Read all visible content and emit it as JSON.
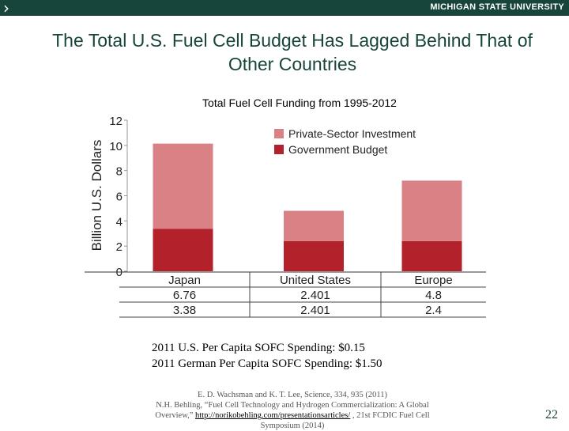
{
  "header": {
    "chevron": "›",
    "brand": "MICHIGAN STATE UNIVERSITY",
    "brand_color": "#18453b"
  },
  "slide": {
    "title_line1": "The Total U.S. Fuel Cell Budget Has Lagged Behind That of",
    "title_line2": "Other Countries",
    "subtitle": "Total Fuel Cell Funding from 1995-2012",
    "note1": "2011 U.S. Per Capita SOFC Spending: $0.15",
    "note2": "2011 German Per Capita SOFC Spending: $1.50",
    "citation_line1": "E. D. Wachsman and K. T. Lee, Science, 334, 935 (2011)",
    "citation_line2": "N.H. Behling, “Fuel Cell Technology and Hydrogen Commercialization: A Global",
    "citation_line3a": "Overview,”",
    "citation_link": "http://norikobehling.com/presentationsarticles/",
    "citation_line3b": ", 21st FCDIC Fuel Cell",
    "citation_line4": "Symposium (2014)",
    "page_number": "22"
  },
  "chart_data": {
    "type": "bar",
    "stacked": true,
    "categories": [
      "Japan",
      "United States",
      "Europe"
    ],
    "series": [
      {
        "name": "Government Budget",
        "values": [
          3.38,
          2.401,
          2.4
        ],
        "color": "#b3212b"
      },
      {
        "name": "Private-Sector Investment",
        "values": [
          6.76,
          2.401,
          4.8
        ],
        "color": "#d98185"
      }
    ],
    "table_rows": [
      [
        "6.76",
        "2.401",
        "4.8"
      ],
      [
        "3.38",
        "2.401",
        "2.4"
      ]
    ],
    "ylabel": "Billion U.S. Dollars",
    "ylim": [
      0,
      12
    ],
    "yticks": [
      0,
      2,
      4,
      6,
      8,
      10,
      12
    ],
    "legend": [
      "Private-Sector Investment",
      "Government Budget"
    ],
    "legend_position": "top-right",
    "grid": false
  }
}
